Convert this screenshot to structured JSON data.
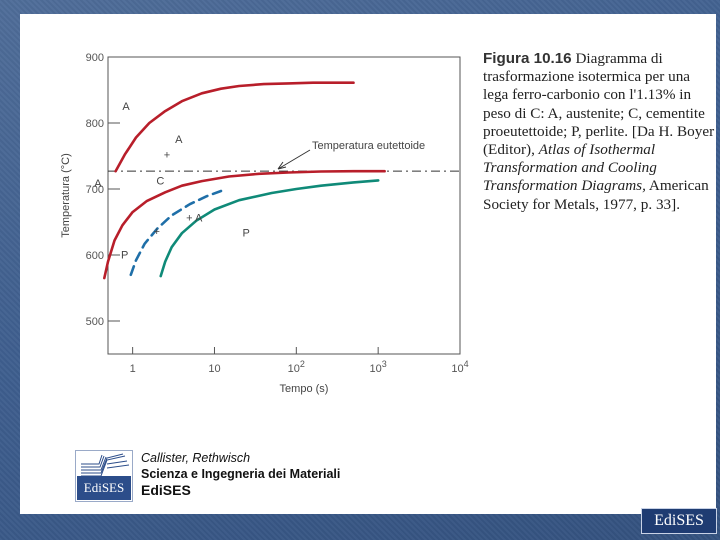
{
  "caption": {
    "figure_label": "Figura 10.16",
    "text_before_italic": "Diagramma di trasformazione isotermica per una lega ferro-carbonio con l'1.13% in peso di C: A, austenite; C, cementite proeutettoide; P, perlite. [Da H. Boyer (Editor),",
    "italic_title": "Atlas of Isothermal Transformation and Cooling Transformation Diagrams,",
    "text_after_italic": "American Society for Metals, 1977, p. 33]."
  },
  "book": {
    "authors": "Callister, Rethwisch",
    "title": "Scienza e Ingegneria dei Materiali",
    "publisher": "EdiSES",
    "logo_text": "EdiSES"
  },
  "corner_logo": "EdiSES",
  "colors": {
    "background": "#3f5f8f",
    "austenite_curves": "#b81e2a",
    "cementite_curve": "#1f6fa8",
    "pearlite_curve": "#0f8a78",
    "eutectoid_line": "#333333"
  },
  "chart_data": {
    "type": "line",
    "xscale": "log",
    "xlabel": "Tempo (s)",
    "ylabel": "Temperatura (°C)",
    "xlim": [
      0.5,
      10000
    ],
    "ylim": [
      450,
      900
    ],
    "x_ticks": [
      {
        "value": 1,
        "base": "1",
        "exp": ""
      },
      {
        "value": 10,
        "base": "10",
        "exp": ""
      },
      {
        "value": 100,
        "base": "10",
        "exp": "2"
      },
      {
        "value": 1000,
        "base": "10",
        "exp": "3"
      },
      {
        "value": 10000,
        "base": "10",
        "exp": "4"
      }
    ],
    "y_ticks": [
      500,
      600,
      700,
      800,
      900
    ],
    "eutectoid": {
      "label": "Temperatura eutettoide",
      "y": 727
    },
    "series": [
      {
        "key": "cem_start",
        "style": "solid",
        "color": "#b81e2a",
        "x": [
          0.62,
          0.8,
          1.1,
          1.6,
          2.5,
          4,
          7,
          12,
          20,
          40,
          80,
          160,
          300,
          500
        ],
        "y": [
          727,
          752,
          778,
          800,
          818,
          833,
          845,
          852,
          856,
          859,
          860,
          861,
          861,
          861
        ]
      },
      {
        "key": "pearl_start",
        "style": "solid",
        "color": "#b81e2a",
        "x": [
          0.45,
          0.5,
          0.6,
          0.75,
          1,
          1.5,
          2.5,
          4,
          7,
          15,
          35,
          80,
          200,
          500,
          1000,
          1200
        ],
        "y": [
          565,
          590,
          622,
          645,
          665,
          682,
          695,
          705,
          712,
          719,
          723,
          725,
          726.5,
          727,
          727,
          727
        ]
      },
      {
        "key": "cem_stop",
        "style": "dashed",
        "color": "#1f6fa8",
        "x": [
          0.95,
          1.1,
          1.4,
          2,
          3,
          5,
          8,
          12
        ],
        "y": [
          570,
          592,
          617,
          640,
          660,
          677,
          689,
          697
        ]
      },
      {
        "key": "pearl_finish",
        "style": "solid",
        "color": "#0f8a78",
        "x": [
          2.2,
          2.5,
          3,
          4,
          6,
          10,
          20,
          50,
          100,
          200,
          500,
          1000
        ],
        "y": [
          568,
          590,
          612,
          633,
          652,
          669,
          683,
          694,
          700,
          705,
          710,
          713
        ]
      }
    ],
    "labels": [
      {
        "text": "A",
        "x": 0.75,
        "y": 820
      },
      {
        "text": "A",
        "x": 3.3,
        "y": 770
      },
      {
        "text": "+",
        "x": 2.4,
        "y": 746
      },
      {
        "text": "A",
        "x": 0.34,
        "y": 703
      },
      {
        "text": "C",
        "x": 1.95,
        "y": 707
      },
      {
        "text": "+ A",
        "x": 4.5,
        "y": 651
      },
      {
        "text": "+",
        "x": 1.8,
        "y": 630
      },
      {
        "text": "P",
        "x": 0.72,
        "y": 595
      },
      {
        "text": "P",
        "x": 22,
        "y": 628
      }
    ]
  }
}
